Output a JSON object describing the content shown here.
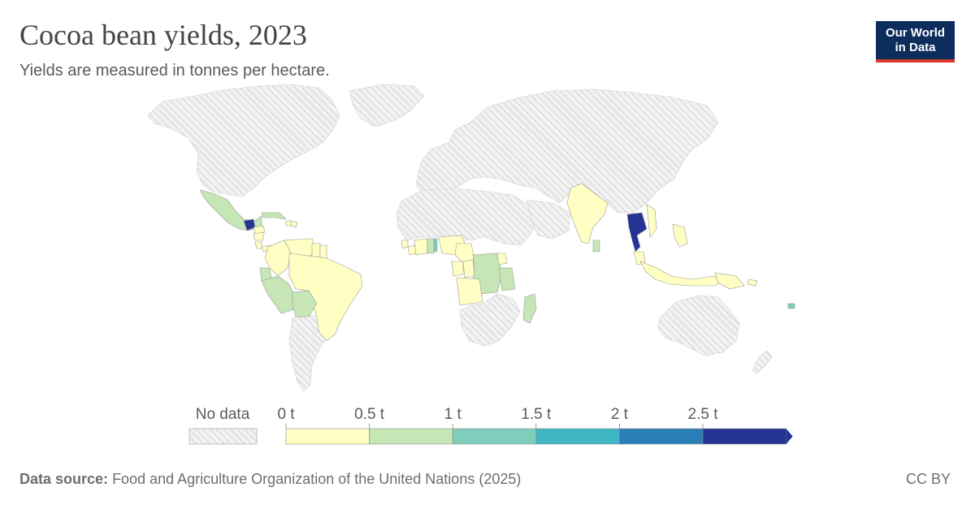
{
  "header": {
    "title": "Cocoa bean yields, 2023",
    "subtitle": "Yields are measured in tonnes per hectare."
  },
  "logo": {
    "line1": "Our World",
    "line2": "in Data"
  },
  "legend": {
    "no_data_label": "No data",
    "bins": [
      {
        "label": "0 t",
        "color": "#ffffc4"
      },
      {
        "label": "0.5 t",
        "color": "#c6e7b5"
      },
      {
        "label": "1 t",
        "color": "#7fcebb"
      },
      {
        "label": "1.5 t",
        "color": "#40b6c4"
      },
      {
        "label": "2 t",
        "color": "#2b7fb8"
      },
      {
        "label": "2.5 t",
        "color": "#253494"
      }
    ]
  },
  "map_data": {
    "no_data_color": "#e0e0e0",
    "countries": [
      {
        "name": "Mexico",
        "bin": 1
      },
      {
        "name": "Guatemala",
        "bin": 5
      },
      {
        "name": "Honduras",
        "bin": 0
      },
      {
        "name": "Nicaragua",
        "bin": 0
      },
      {
        "name": "Costa Rica",
        "bin": 0
      },
      {
        "name": "Panama",
        "bin": 0
      },
      {
        "name": "Cuba",
        "bin": 1
      },
      {
        "name": "Haiti",
        "bin": 0
      },
      {
        "name": "Dominican Republic",
        "bin": 0
      },
      {
        "name": "Venezuela",
        "bin": 0
      },
      {
        "name": "Colombia",
        "bin": 0
      },
      {
        "name": "Guyana",
        "bin": 0
      },
      {
        "name": "Suriname",
        "bin": 0
      },
      {
        "name": "Ecuador",
        "bin": 1
      },
      {
        "name": "Peru",
        "bin": 1
      },
      {
        "name": "Brazil",
        "bin": 0
      },
      {
        "name": "Bolivia",
        "bin": 1
      },
      {
        "name": "Sierra Leone",
        "bin": 0
      },
      {
        "name": "Liberia",
        "bin": 0
      },
      {
        "name": "Cote d'Ivoire",
        "bin": 0
      },
      {
        "name": "Ghana",
        "bin": 1
      },
      {
        "name": "Togo",
        "bin": 2
      },
      {
        "name": "Nigeria",
        "bin": 0
      },
      {
        "name": "Cameroon",
        "bin": 0
      },
      {
        "name": "Gabon",
        "bin": 0
      },
      {
        "name": "Congo",
        "bin": 0
      },
      {
        "name": "DR Congo",
        "bin": 1
      },
      {
        "name": "Angola",
        "bin": 0
      },
      {
        "name": "Tanzania",
        "bin": 1
      },
      {
        "name": "Uganda",
        "bin": 0
      },
      {
        "name": "Madagascar",
        "bin": 1
      },
      {
        "name": "India",
        "bin": 0
      },
      {
        "name": "Sri Lanka",
        "bin": 1
      },
      {
        "name": "Thailand",
        "bin": 5
      },
      {
        "name": "Vietnam",
        "bin": 0
      },
      {
        "name": "Malaysia",
        "bin": 0
      },
      {
        "name": "Indonesia",
        "bin": 0
      },
      {
        "name": "Philippines",
        "bin": 0
      },
      {
        "name": "Papua New Guinea",
        "bin": 0
      },
      {
        "name": "Vanuatu",
        "bin": 2
      },
      {
        "name": "Solomon Islands",
        "bin": 0
      }
    ]
  },
  "footer": {
    "source_label": "Data source:",
    "source_text": "Food and Agriculture Organization of the United Nations (2025)",
    "license": "CC BY"
  }
}
